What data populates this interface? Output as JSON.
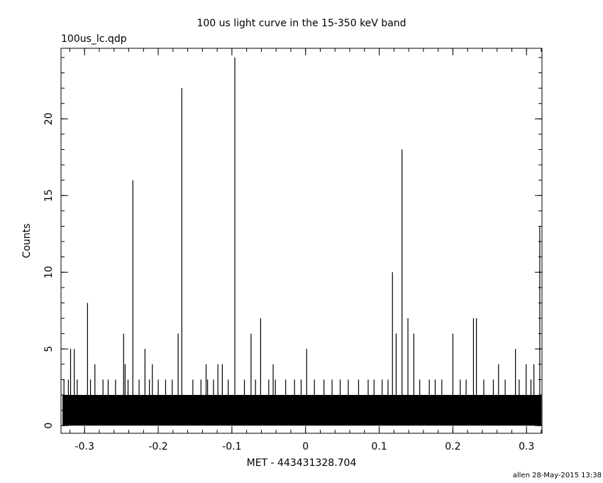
{
  "chart_data": {
    "type": "bar",
    "title": "100 us light curve in the 15-350 keV band",
    "subtitle": "100us_lc.qdp",
    "xlabel": "MET - 443431328.704",
    "ylabel": "Counts",
    "footer": "allen 28-May-2015 13:38",
    "color": "#000000",
    "xlim": [
      -0.332,
      0.321
    ],
    "ylim": [
      -0.5,
      24.6
    ],
    "xticks": [
      -0.3,
      -0.2,
      -0.1,
      0,
      0.1,
      0.2,
      0.3
    ],
    "yticks": [
      0,
      5,
      10,
      15,
      20
    ],
    "series": [
      {
        "type": "bar",
        "x": [
          -0.33,
          -0.325,
          -0.32,
          -0.315,
          -0.31,
          -0.305,
          -0.3,
          -0.295,
          -0.29,
          -0.285,
          -0.28,
          -0.275,
          -0.27,
          -0.265,
          -0.26,
          -0.255,
          -0.25,
          -0.245,
          -0.24,
          -0.235,
          -0.23,
          -0.225,
          -0.22,
          -0.215,
          -0.21,
          -0.205,
          -0.2,
          -0.195,
          -0.19,
          -0.185,
          -0.18,
          -0.175,
          -0.17,
          -0.165,
          -0.16,
          -0.155,
          -0.15,
          -0.145,
          -0.14,
          -0.135,
          -0.13,
          -0.125,
          -0.12,
          -0.115,
          -0.11,
          -0.105,
          -0.1,
          -0.095,
          -0.09,
          -0.085,
          -0.08,
          -0.075,
          -0.07,
          -0.065,
          -0.06,
          -0.055,
          -0.05,
          -0.045,
          -0.04,
          -0.035,
          -0.03,
          -0.025,
          -0.02,
          -0.015,
          -0.01,
          -0.005,
          0,
          0.005,
          0.01,
          0.015,
          0.02,
          0.025,
          0.03,
          0.035,
          0.04,
          0.045,
          0.05,
          0.055,
          0.06,
          0.065,
          0.07,
          0.075,
          0.08,
          0.085,
          0.09,
          0.095,
          0.1,
          0.105,
          0.11,
          0.115,
          0.12,
          0.125,
          0.13,
          0.135,
          0.14,
          0.145,
          0.15,
          0.155,
          0.16,
          0.165,
          0.17,
          0.175,
          0.18,
          0.185,
          0.19,
          0.195,
          0.2,
          0.205,
          0.21,
          0.215,
          0.22,
          0.225,
          0.23,
          0.235,
          0.24,
          0.245,
          0.25,
          0.255,
          0.26,
          0.265,
          0.27,
          0.275,
          0.28,
          0.285,
          0.29,
          0.295,
          0.3,
          0.305,
          0.31,
          0.315
        ],
        "values": [
          2,
          2,
          2,
          2,
          2,
          2,
          2,
          2,
          2,
          2,
          2,
          2,
          2,
          2,
          2,
          2,
          2,
          2,
          2,
          2,
          2,
          2,
          2,
          2,
          2,
          2,
          2,
          2,
          2,
          2,
          2,
          2,
          2,
          2,
          2,
          2,
          2,
          2,
          2,
          2,
          2,
          2,
          2,
          2,
          2,
          2,
          2,
          2,
          2,
          2,
          2,
          2,
          2,
          2,
          2,
          2,
          2,
          2,
          2,
          2,
          2,
          2,
          2,
          2,
          2,
          2,
          2,
          2,
          2,
          2,
          2,
          2,
          2,
          2,
          2,
          2,
          2,
          2,
          2,
          2,
          2,
          2,
          2,
          2,
          2,
          2,
          2,
          2,
          2,
          2,
          2,
          2,
          2,
          2,
          2,
          2,
          2,
          2,
          2,
          2,
          2,
          2,
          2,
          2,
          2,
          2,
          2,
          2,
          2,
          2,
          2,
          2,
          2,
          2,
          2,
          2,
          2,
          2,
          2,
          2,
          2,
          2,
          2,
          2,
          2,
          2,
          2,
          2,
          2,
          2
        ]
      },
      {
        "type": "impulse",
        "x": [
          -0.328,
          -0.322,
          -0.319,
          -0.314,
          -0.31,
          -0.296,
          -0.292,
          -0.286,
          -0.275,
          -0.268,
          -0.258,
          -0.247,
          -0.245,
          -0.241,
          -0.2345,
          -0.226,
          -0.218,
          -0.212,
          -0.208,
          -0.2,
          -0.19,
          -0.181,
          -0.173,
          -0.168,
          -0.153,
          -0.142,
          -0.135,
          -0.133,
          -0.125,
          -0.119,
          -0.113,
          -0.105,
          -0.096,
          -0.083,
          -0.074,
          -0.068,
          -0.061,
          -0.05,
          -0.044,
          -0.041,
          -0.027,
          -0.015,
          -0.006,
          0.0015,
          0.012,
          0.025,
          0.036,
          0.047,
          0.058,
          0.072,
          0.085,
          0.093,
          0.104,
          0.112,
          0.118,
          0.123,
          0.131,
          0.139,
          0.147,
          0.155,
          0.168,
          0.176,
          0.185,
          0.2,
          0.21,
          0.218,
          0.228,
          0.232,
          0.242,
          0.255,
          0.262,
          0.271,
          0.285,
          0.29,
          0.2995,
          0.306,
          0.31,
          0.318
        ],
        "values": [
          3,
          3,
          5,
          5,
          3,
          8,
          3,
          4,
          3,
          3,
          3,
          6,
          4,
          3,
          16,
          3,
          5,
          3,
          4,
          3,
          3,
          3,
          6,
          22,
          3,
          3,
          4,
          3,
          3,
          4,
          4,
          3,
          24,
          3,
          6,
          3,
          7,
          3,
          4,
          3,
          3,
          3,
          3,
          5,
          3,
          3,
          3,
          3,
          3,
          3,
          3,
          3,
          3,
          3,
          10,
          6,
          18,
          7,
          6,
          3,
          3,
          3,
          3,
          6,
          3,
          3,
          7,
          7,
          3,
          3,
          4,
          3,
          5,
          3,
          4,
          3,
          4,
          13
        ]
      }
    ]
  }
}
